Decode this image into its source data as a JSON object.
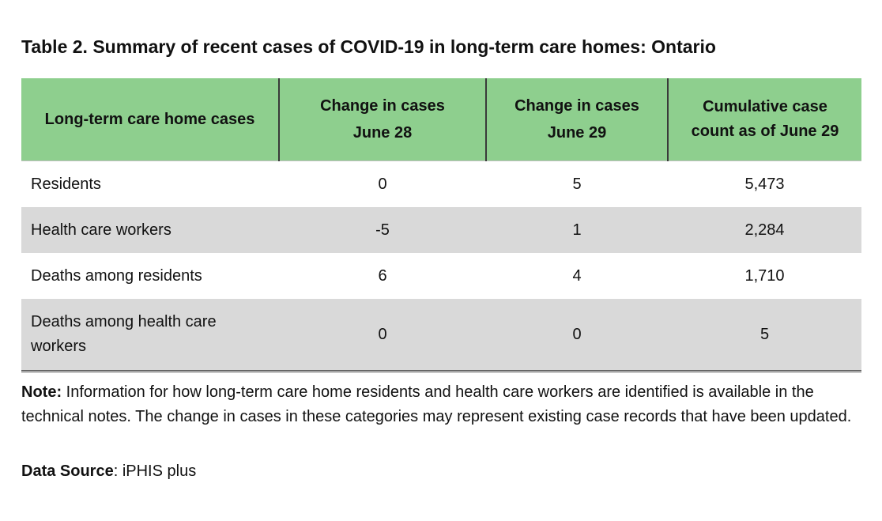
{
  "title": "Table 2. Summary of recent cases of COVID-19 in long-term care homes: Ontario",
  "table": {
    "headers": [
      {
        "line1": "Long-term care home cases",
        "line2": ""
      },
      {
        "line1": "Change in cases",
        "line2": "June 28"
      },
      {
        "line1": "Change in cases",
        "line2": "June 29"
      },
      {
        "line1": "Cumulative case",
        "line2": "count as of June 29"
      }
    ],
    "rows": [
      {
        "label": "Residents",
        "june28": "0",
        "june29": "5",
        "cumulative": "5,473"
      },
      {
        "label": "Health care workers",
        "june28": "-5",
        "june29": "1",
        "cumulative": "2,284"
      },
      {
        "label": "Deaths among residents",
        "june28": "6",
        "june29": "4",
        "cumulative": "1,710"
      },
      {
        "label": "Deaths among health care workers",
        "june28": "0",
        "june29": "0",
        "cumulative": "5"
      }
    ],
    "header_color": "#8ecf8e",
    "alt_row_color": "#d9d9d9"
  },
  "note": {
    "label": "Note:",
    "text": " Information for how long-term care home residents and health care workers are identified is available in the technical notes. The change in cases in these categories may represent existing case records that have been updated."
  },
  "source": {
    "label": "Data Source",
    "text": ": iPHIS plus"
  }
}
